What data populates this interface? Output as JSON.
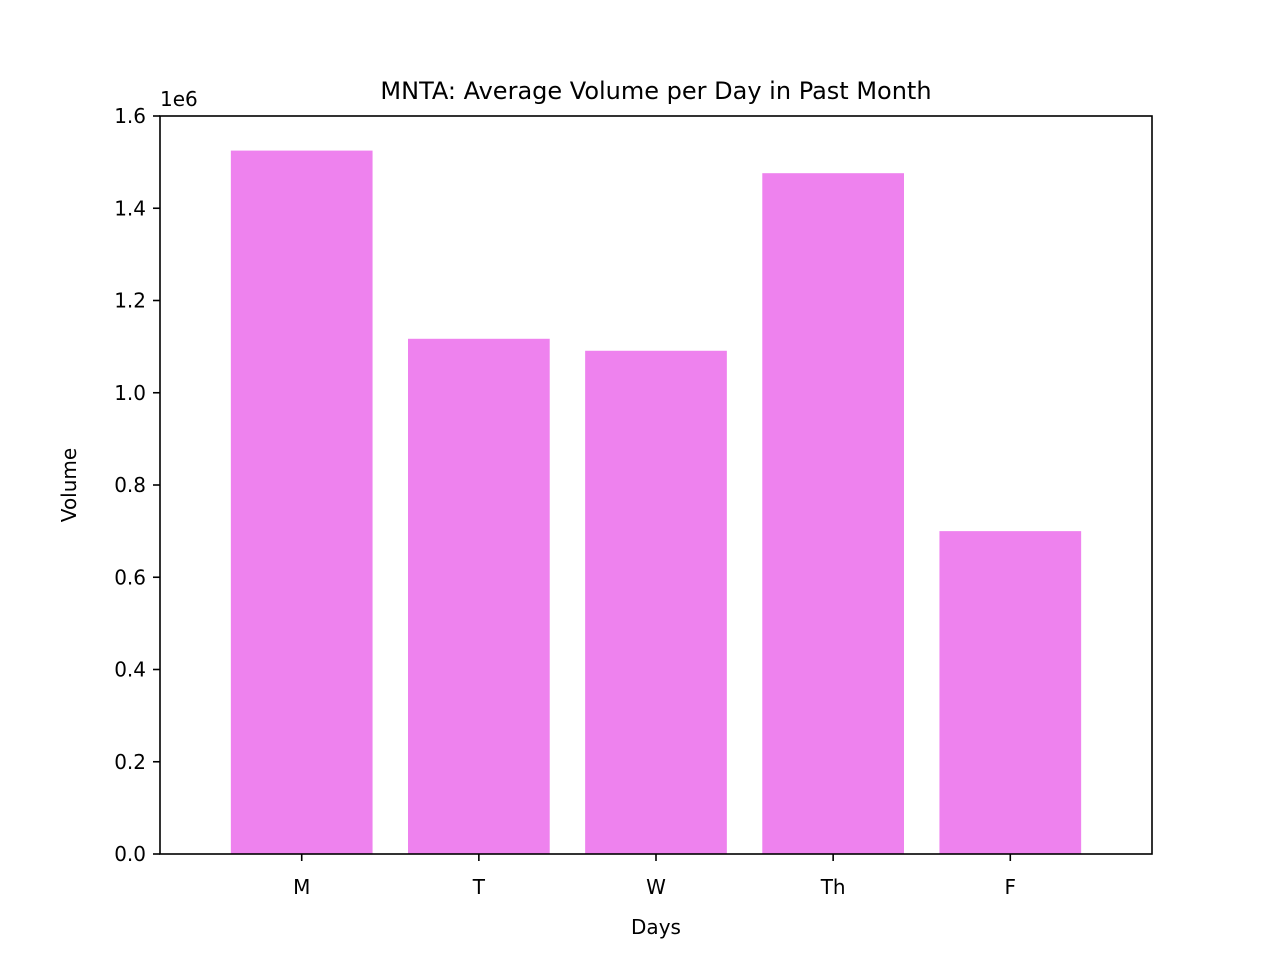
{
  "chart_data": {
    "type": "bar",
    "title": "MNTA: Average Volume per Day in Past Month",
    "xlabel": "Days",
    "ylabel": "Volume",
    "categories": [
      "M",
      "T",
      "W",
      "Th",
      "F"
    ],
    "values": [
      1525000,
      1117000,
      1091000,
      1476000,
      700000
    ],
    "ylim": [
      0,
      1600000
    ],
    "yticks": [
      0,
      200000,
      400000,
      600000,
      800000,
      1000000,
      1200000,
      1400000,
      1600000
    ],
    "ytick_labels": [
      "0.0",
      "0.2",
      "0.4",
      "0.6",
      "0.8",
      "1.0",
      "1.2",
      "1.4",
      "1.6"
    ],
    "y_offset_label": "1e6",
    "grid": false,
    "bar_color": "#ee82ee"
  }
}
